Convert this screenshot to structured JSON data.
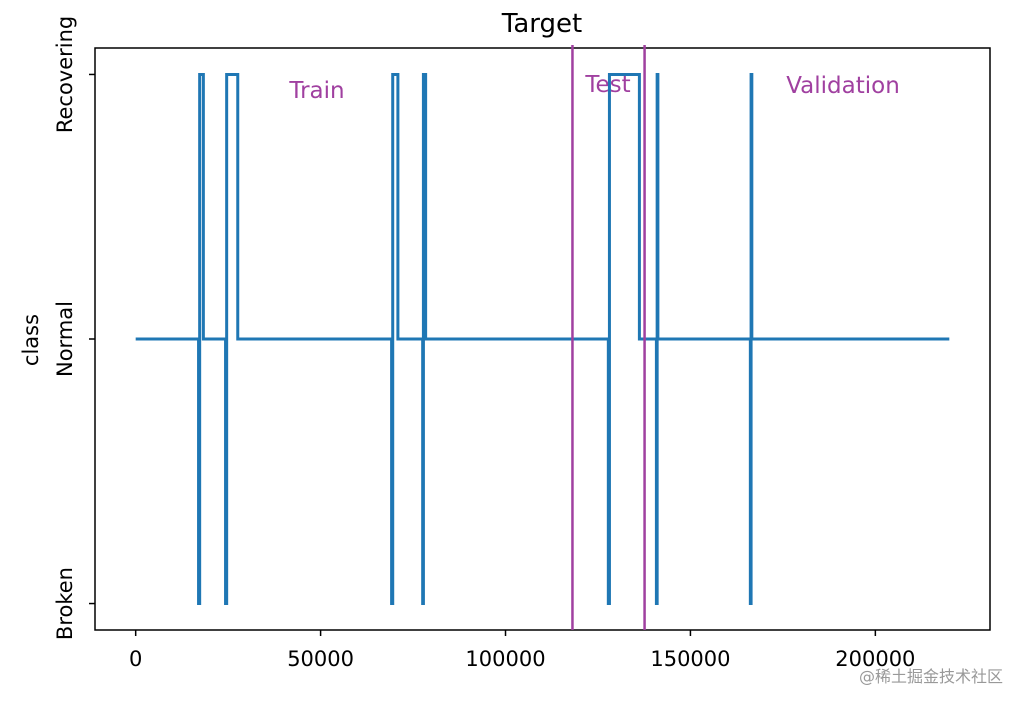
{
  "chart_data": {
    "type": "line",
    "title": "Target",
    "y_label": "class",
    "x": [
      0,
      17000,
      17000,
      17300,
      17300,
      18300,
      18300,
      24300,
      24300,
      24600,
      24600,
      27600,
      27600,
      69200,
      69200,
      69500,
      69500,
      70900,
      70900,
      77600,
      77600,
      77800,
      77800,
      78400,
      78400,
      127800,
      127800,
      128100,
      128100,
      136200,
      136200,
      140800,
      140800,
      141000,
      141000,
      141200,
      141200,
      166200,
      166200,
      166400,
      166400,
      166600,
      166600,
      220000
    ],
    "series": [
      {
        "color": "#1f77b4",
        "values": [
          1,
          1,
          0,
          0,
          2,
          2,
          1,
          1,
          0,
          0,
          2,
          2,
          1,
          1,
          0,
          0,
          2,
          2,
          1,
          1,
          0,
          0,
          2,
          2,
          1,
          1,
          0,
          0,
          2,
          2,
          1,
          1,
          0,
          0,
          2,
          2,
          1,
          1,
          0,
          0,
          2,
          2,
          1,
          1
        ]
      }
    ],
    "xlim": [
      -11000,
      231000
    ],
    "ylim": [
      -0.1,
      2.1
    ],
    "xticks": [
      0,
      50000,
      100000,
      150000,
      200000
    ],
    "yticks": [
      {
        "value": 0,
        "label": "Broken"
      },
      {
        "value": 1,
        "label": "Normal"
      },
      {
        "value": 2,
        "label": "Recovering"
      }
    ],
    "vlines": [
      {
        "x": 118100,
        "color": "#a040a0"
      },
      {
        "x": 137600,
        "color": "#a040a0"
      }
    ],
    "annotations": [
      "Train",
      "Test",
      "Validation"
    ],
    "annotation_color": "#a040a0",
    "watermark": "@稀土掘金技术社区"
  }
}
